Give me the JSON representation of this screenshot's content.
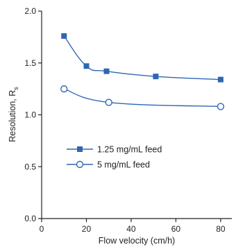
{
  "chart_data": {
    "type": "line",
    "xlabel": "Flow velocity (cm/h)",
    "ylabel": "Resolution, R",
    "ylabel_subscript": "s",
    "xlim": [
      0,
      85
    ],
    "ylim": [
      0,
      2.0
    ],
    "x_ticks": [
      "0",
      "20",
      "40",
      "60",
      "80"
    ],
    "y_ticks": [
      "0.0",
      "0.5",
      "1.0",
      "1.5",
      "2.0"
    ],
    "grid": false,
    "legend_position": "center-left",
    "series": [
      {
        "name": "1.25 mg/mL feed",
        "marker": "filled-square",
        "color": "#2f66b3",
        "x": [
          10,
          20,
          29,
          51,
          80
        ],
        "y": [
          1.76,
          1.47,
          1.42,
          1.37,
          1.34
        ]
      },
      {
        "name": "5 mg/mL feed",
        "marker": "open-circle",
        "color": "#2f66b3",
        "x": [
          10,
          30,
          80
        ],
        "y": [
          1.25,
          1.12,
          1.08
        ]
      }
    ]
  }
}
